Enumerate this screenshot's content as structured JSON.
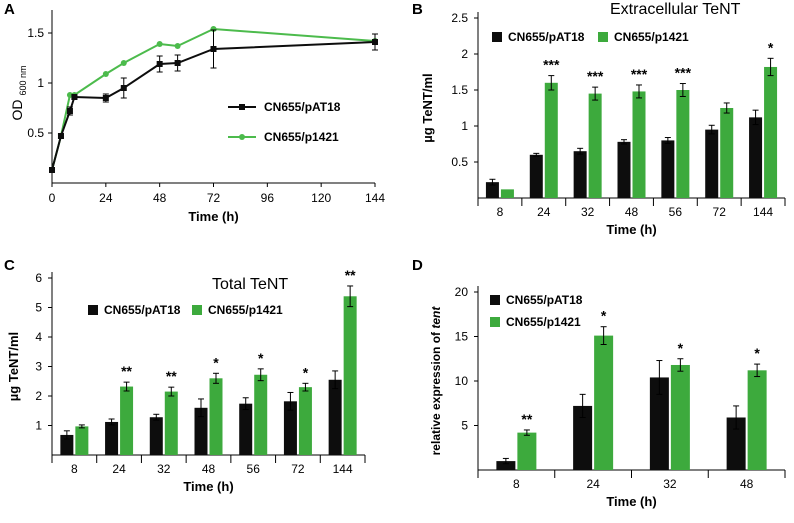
{
  "colors": {
    "black_series": "#0d0d0d",
    "green_series": "#3daa3d",
    "green_line": "#4cbb4c",
    "axis": "#000000"
  },
  "chart_data": [
    {
      "panel": "A",
      "type": "line",
      "title": "",
      "xlabel": "Time  (h)",
      "ylabel_main": "OD",
      "ylabel_sub": "600 nm",
      "xlim": [
        0,
        144
      ],
      "ylim": [
        0,
        1.65
      ],
      "xticks": [
        0,
        24,
        48,
        72,
        96,
        120,
        144
      ],
      "xtick_labels": [
        "0",
        "24",
        "48",
        "72",
        "96",
        "120",
        "144"
      ],
      "yticks": [
        0.5,
        1,
        1.5
      ],
      "ytick_labels": [
        "0.5",
        "1",
        "1.5"
      ],
      "legend": "center-right",
      "series": [
        {
          "name": "CN655/pAT18",
          "color": "#0d0d0d",
          "marker": "square",
          "x": [
            0,
            4,
            8,
            10,
            24,
            32,
            48,
            56,
            72,
            144
          ],
          "y": [
            0.13,
            0.47,
            0.72,
            0.86,
            0.85,
            0.95,
            1.19,
            1.2,
            1.34,
            1.41
          ],
          "err": [
            0.01,
            0.02,
            0.04,
            0.02,
            0.04,
            0.1,
            0.08,
            0.08,
            0.19,
            0.08
          ]
        },
        {
          "name": "CN655/p1421",
          "color": "#4cbb4c",
          "marker": "circle",
          "x": [
            0,
            4,
            8,
            10,
            24,
            32,
            48,
            56,
            72,
            144
          ],
          "y": [
            0.13,
            0.47,
            0.88,
            0.88,
            1.09,
            1.2,
            1.39,
            1.37,
            1.54,
            1.42
          ],
          "err": [
            0,
            0,
            0,
            0,
            0,
            0,
            0,
            0,
            0,
            0
          ]
        }
      ]
    },
    {
      "panel": "B",
      "type": "bar",
      "title": "Extracellular  TeNT",
      "xlabel": "Time  (h)",
      "ylabel": "µg  TeNT/ml",
      "ylim": [
        0,
        2.5
      ],
      "yticks": [
        0.5,
        1,
        1.5,
        2,
        2.5
      ],
      "ytick_labels": [
        "0.5",
        "1",
        "1.5",
        "2",
        "2.5"
      ],
      "categories": [
        "8",
        "24",
        "32",
        "48",
        "56",
        "72",
        "144"
      ],
      "legend": "top-left",
      "series": [
        {
          "name": "CN655/pAT18",
          "color": "#0d0d0d",
          "values": [
            0.22,
            0.6,
            0.65,
            0.78,
            0.8,
            0.95,
            1.12
          ],
          "err": [
            0.04,
            0.02,
            0.04,
            0.03,
            0.04,
            0.06,
            0.1
          ]
        },
        {
          "name": "CN655/p1421",
          "color": "#3daa3d",
          "values": [
            0.12,
            1.6,
            1.45,
            1.48,
            1.5,
            1.25,
            1.82
          ],
          "err": [
            0,
            0.1,
            0.09,
            0.09,
            0.09,
            0.07,
            0.12
          ]
        }
      ],
      "annotations": [
        "",
        "***",
        "***",
        "***",
        "***",
        "",
        "*"
      ]
    },
    {
      "panel": "C",
      "type": "bar",
      "title": "Total TeNT",
      "xlabel": "Time  (h)",
      "ylabel": "µg  TeNT/ml",
      "ylim": [
        0,
        6
      ],
      "yticks": [
        1,
        2,
        3,
        4,
        5,
        6
      ],
      "ytick_labels": [
        "1",
        "2",
        "3",
        "4",
        "5",
        "6"
      ],
      "categories": [
        "8",
        "24",
        "32",
        "48",
        "56",
        "72",
        "144"
      ],
      "legend": "top-left",
      "series": [
        {
          "name": "CN655/pAT18",
          "color": "#0d0d0d",
          "values": [
            0.68,
            1.12,
            1.28,
            1.6,
            1.74,
            1.82,
            2.55
          ],
          "err": [
            0.14,
            0.1,
            0.1,
            0.3,
            0.2,
            0.3,
            0.3
          ]
        },
        {
          "name": "CN655/p1421",
          "color": "#3daa3d",
          "values": [
            0.97,
            2.32,
            2.15,
            2.6,
            2.72,
            2.3,
            5.38
          ],
          "err": [
            0.05,
            0.15,
            0.15,
            0.17,
            0.2,
            0.13,
            0.35
          ]
        }
      ],
      "annotations": [
        "",
        "**",
        "**",
        "*",
        "*",
        "*",
        "**"
      ]
    },
    {
      "panel": "D",
      "type": "bar",
      "title": "",
      "xlabel": "Time  (h)",
      "ylabel_pre": "relative  expression  of  ",
      "ylabel_italic": "tent",
      "ylim": [
        0,
        20
      ],
      "yticks": [
        5,
        10,
        15,
        20
      ],
      "ytick_labels": [
        "5",
        "10",
        "15",
        "20"
      ],
      "categories": [
        "8",
        "24",
        "32",
        "48"
      ],
      "legend": "top-left",
      "series": [
        {
          "name": "CN655/pAT18",
          "color": "#0d0d0d",
          "values": [
            1.0,
            7.2,
            10.4,
            5.9
          ],
          "err": [
            0.3,
            1.3,
            1.9,
            1.3
          ]
        },
        {
          "name": "CN655/p1421",
          "color": "#3daa3d",
          "values": [
            4.2,
            15.1,
            11.8,
            11.2
          ],
          "err": [
            0.3,
            1.0,
            0.7,
            0.7
          ]
        }
      ],
      "annotations": [
        "**",
        "*",
        "*",
        "*"
      ]
    }
  ]
}
